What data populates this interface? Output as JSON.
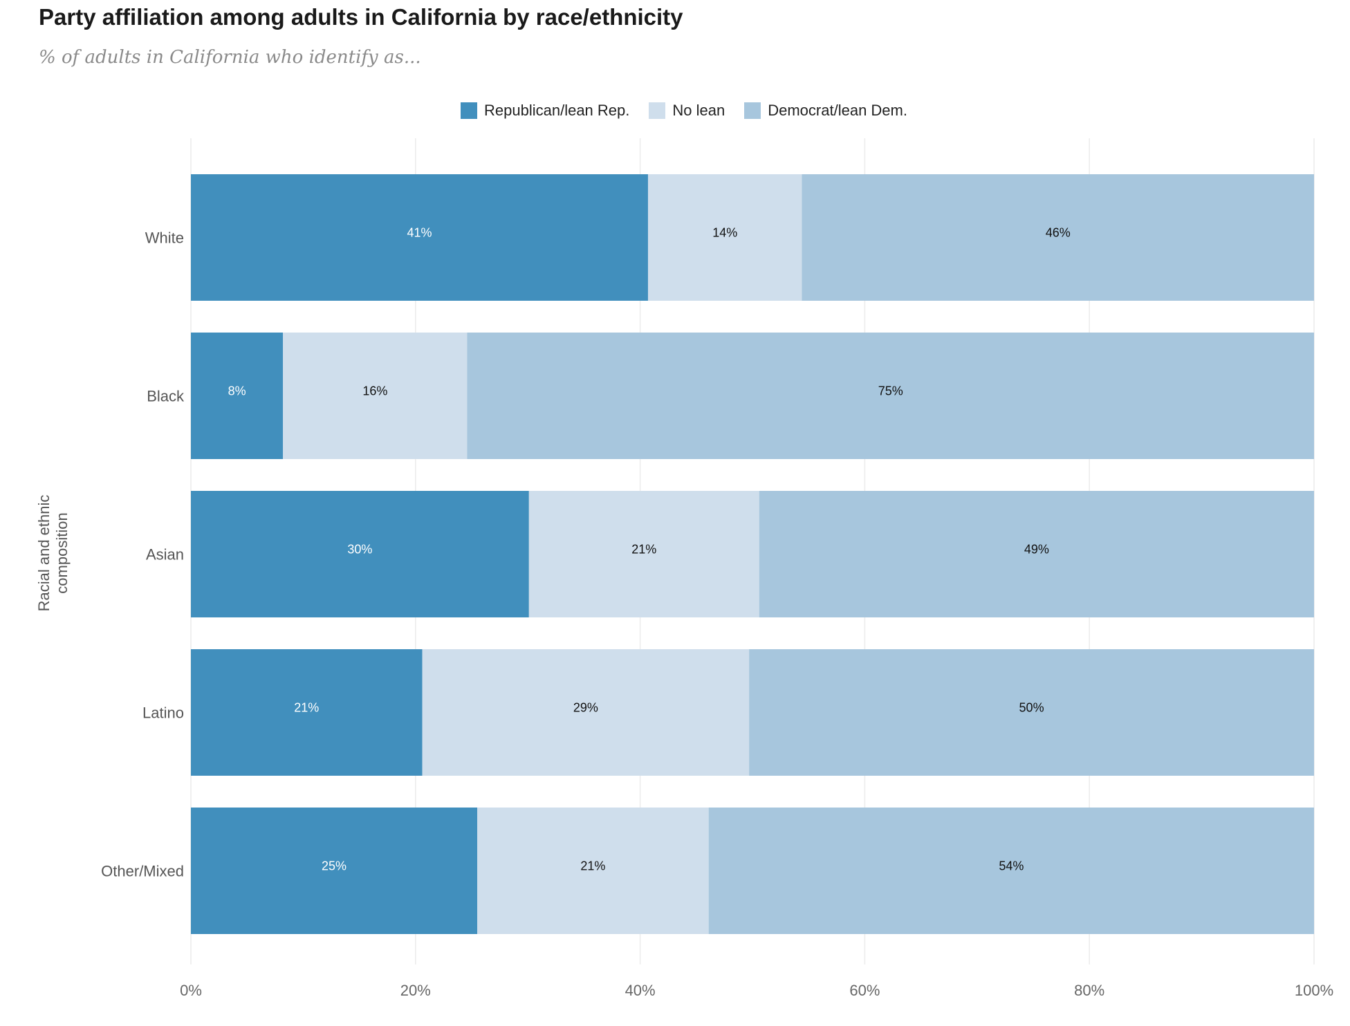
{
  "chart_data": {
    "type": "bar",
    "orientation": "horizontal",
    "stacked": true,
    "title": "Party affiliation among adults in California by race/ethnicity",
    "subtitle": "% of adults in California who identify as...",
    "ylabel": "Racial and ethnic composition",
    "xlabel": "",
    "xlim": [
      0,
      100
    ],
    "x_ticks": [
      0,
      20,
      40,
      60,
      80,
      100
    ],
    "x_tick_labels": [
      "0%",
      "20%",
      "40%",
      "60%",
      "80%",
      "100%"
    ],
    "grid": true,
    "legend_position": "top-center",
    "categories": [
      "White",
      "Black",
      "Asian",
      "Latino",
      "Other/Mixed"
    ],
    "series": [
      {
        "name": "Republican/lean Rep.",
        "color": "#418fbd",
        "label_color": "#ffffff",
        "values": [
          40.7,
          8.2,
          30.1,
          20.6,
          25.5
        ],
        "labels": [
          "41%",
          "8%",
          "30%",
          "21%",
          "25%"
        ]
      },
      {
        "name": "No lean",
        "color": "#cfdeec",
        "label_color": "#111111",
        "values": [
          13.7,
          16.4,
          20.5,
          29.1,
          20.6
        ],
        "labels": [
          "14%",
          "16%",
          "21%",
          "29%",
          "21%"
        ]
      },
      {
        "name": "Democrat/lean Dem.",
        "color": "#a7c6dd",
        "label_color": "#111111",
        "values": [
          45.6,
          75.4,
          49.4,
          50.3,
          53.9
        ],
        "labels": [
          "46%",
          "75%",
          "49%",
          "50%",
          "54%"
        ]
      }
    ]
  }
}
